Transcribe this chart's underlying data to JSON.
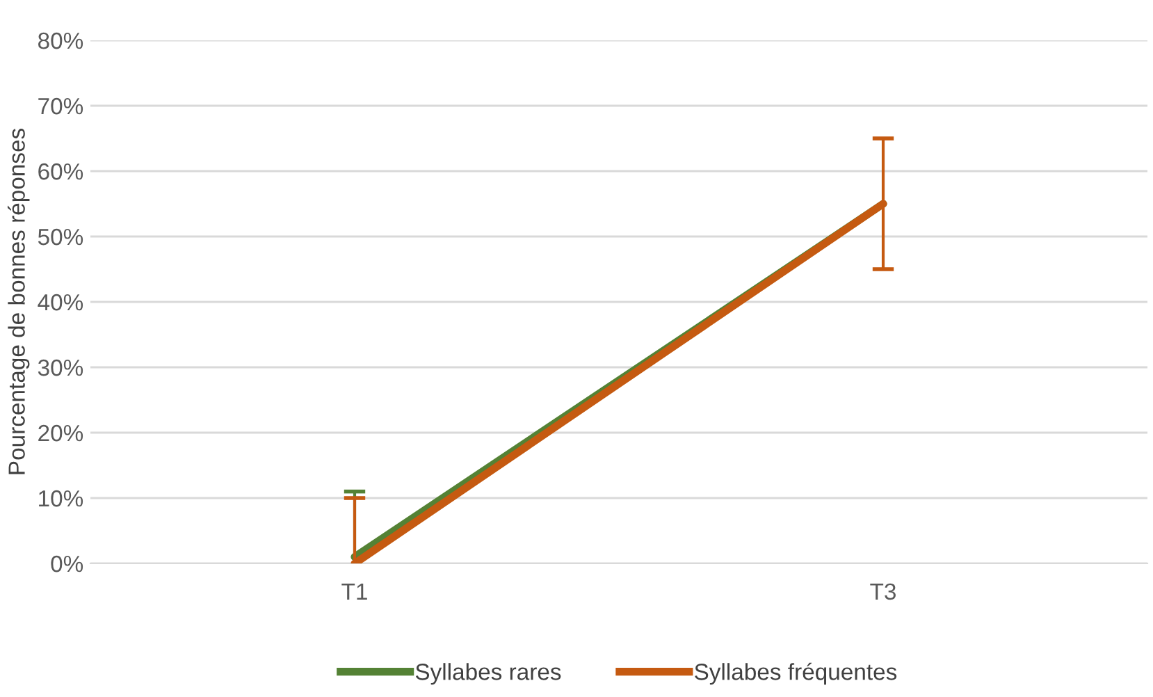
{
  "chart_data": {
    "type": "line",
    "ylabel": "Pourcentage de bonnes réponses",
    "categories": [
      "T1",
      "T3"
    ],
    "series": [
      {
        "name": "Syllabes rares",
        "color": "#548235",
        "values": [
          1,
          55
        ],
        "errors": [
          [
            1,
            11
          ],
          null
        ]
      },
      {
        "name": "Syllabes fréquentes",
        "color": "#c55a11",
        "values": [
          0,
          55
        ],
        "errors": [
          [
            0,
            10
          ],
          [
            45,
            65
          ]
        ]
      }
    ],
    "ylim": [
      0,
      80
    ],
    "yticks": [
      {
        "value": 0,
        "label": "0%"
      },
      {
        "value": 10,
        "label": "10%"
      },
      {
        "value": 20,
        "label": "20%"
      },
      {
        "value": 30,
        "label": "30%"
      },
      {
        "value": 40,
        "label": "40%"
      },
      {
        "value": 50,
        "label": "50%"
      },
      {
        "value": 60,
        "label": "60%"
      },
      {
        "value": 70,
        "label": "70%"
      },
      {
        "value": 80,
        "label": "80%"
      }
    ],
    "grid": "y",
    "legend": "bottom",
    "marker": "none",
    "line_style": "solid"
  }
}
